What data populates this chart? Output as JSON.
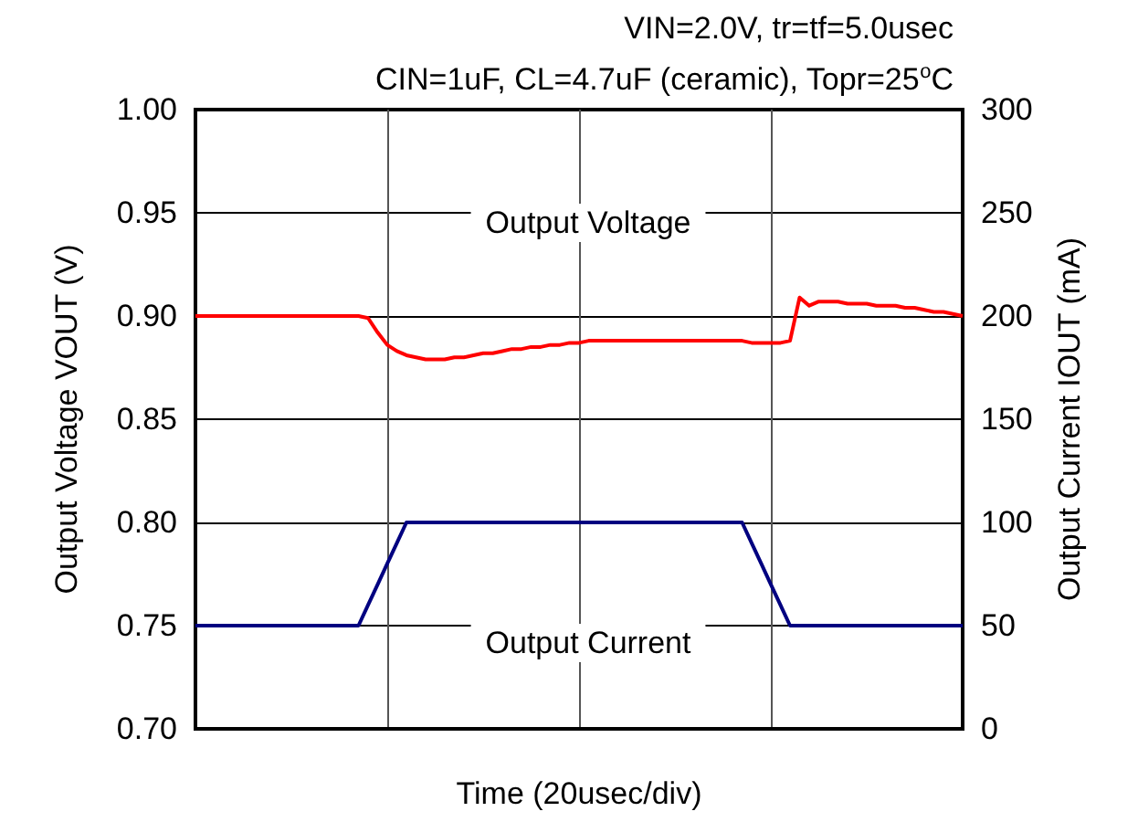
{
  "chart_data": {
    "type": "line",
    "title": "VIN=2.0V, tr=tf=5.0usec",
    "subtitle": "CIN=1uF, CL=4.7uF (ceramic), Topr=25$^{o}$C",
    "xlabel": "Time (20usec/div)",
    "ylabel": "Output Voltage VOUT (V)",
    "y2label": "Output Current IOUT (mA)",
    "annotations": [
      "Output Voltage",
      "Output Current"
    ],
    "categories": [
      null,
      null,
      null,
      null,
      null,
      null,
      null,
      null,
      null,
      null,
      null,
      null,
      null,
      null,
      null,
      null,
      null,
      null,
      null,
      null,
      null,
      null,
      null,
      null,
      null,
      null,
      null,
      null,
      null,
      null,
      null,
      null,
      null,
      null,
      null,
      null,
      null,
      null,
      null,
      null,
      null,
      null,
      null,
      null,
      null,
      null,
      null,
      null,
      null,
      null,
      null,
      null,
      null,
      null,
      null,
      null,
      null,
      null,
      null,
      null,
      null,
      null,
      null,
      null,
      null,
      null,
      null,
      null,
      null,
      null,
      null,
      null,
      null,
      null,
      null,
      null,
      null,
      null,
      null,
      null,
      null
    ],
    "series": [
      {
        "color": "#ff0000",
        "values": [
          0.9,
          0.9,
          0.9,
          0.9,
          0.9,
          0.9,
          0.9,
          0.9,
          0.9,
          0.9,
          0.9,
          0.9,
          0.9,
          0.9,
          0.9,
          0.9,
          0.9,
          0.9,
          0.899,
          0.892,
          0.886,
          0.883,
          0.881,
          0.88,
          0.879,
          0.879,
          0.879,
          0.88,
          0.88,
          0.881,
          0.882,
          0.882,
          0.883,
          0.884,
          0.884,
          0.885,
          0.885,
          0.886,
          0.886,
          0.887,
          0.887,
          0.888,
          0.888,
          0.888,
          0.888,
          0.888,
          0.888,
          0.888,
          0.888,
          0.888,
          0.888,
          0.888,
          0.888,
          0.888,
          0.888,
          0.888,
          0.888,
          0.888,
          0.887,
          0.887,
          0.887,
          0.887,
          0.888,
          0.909,
          0.905,
          0.907,
          0.907,
          0.907,
          0.906,
          0.906,
          0.906,
          0.905,
          0.905,
          0.905,
          0.904,
          0.904,
          0.903,
          0.902,
          0.902,
          0.901,
          0.9
        ]
      },
      {
        "color": "#000080",
        "axis": "y2",
        "values": [
          50,
          50,
          50,
          50,
          50,
          50,
          50,
          50,
          50,
          50,
          50,
          50,
          50,
          50,
          50,
          50,
          50,
          50,
          60,
          70,
          80,
          90,
          100,
          100,
          100,
          100,
          100,
          100,
          100,
          100,
          100,
          100,
          100,
          100,
          100,
          100,
          100,
          100,
          100,
          100,
          100,
          100,
          100,
          100,
          100,
          100,
          100,
          100,
          100,
          100,
          100,
          100,
          100,
          100,
          100,
          100,
          100,
          100,
          90,
          80,
          70,
          60,
          50,
          50,
          50,
          50,
          50,
          50,
          50,
          50,
          50,
          50,
          50,
          50,
          50,
          50,
          50,
          50,
          50,
          50,
          50
        ]
      }
    ],
    "ylim": [
      0.7,
      1.0
    ],
    "yticks": [
      {
        "value": 0.7,
        "label": "0.70"
      },
      {
        "value": 0.75,
        "label": "0.75"
      },
      {
        "value": 0.8,
        "label": "0.80"
      },
      {
        "value": 0.85,
        "label": "0.85"
      },
      {
        "value": 0.9,
        "label": "0.90"
      },
      {
        "value": 0.95,
        "label": "0.95"
      },
      {
        "value": 1.0,
        "label": "1.00"
      }
    ],
    "y2lim": [
      0,
      300
    ],
    "y2ticks": [
      0,
      50,
      100,
      150,
      200,
      250,
      300
    ],
    "grid": true,
    "marker": "none",
    "line_style": "solid"
  }
}
